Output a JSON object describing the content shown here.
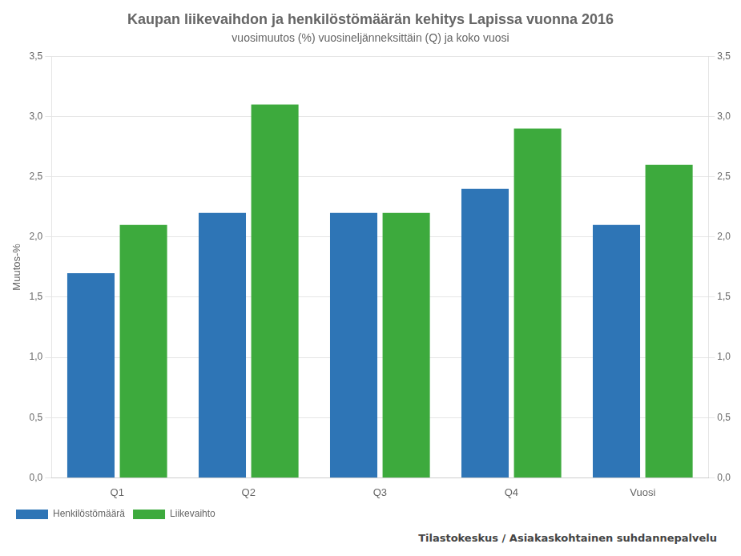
{
  "chart_data": {
    "type": "bar",
    "title": "Kaupan liikevaihdon ja henkilöstömäärän kehitys Lapissa vuonna 2016",
    "subtitle": "vuosimuutos (%) vuosineljänneksittäin (Q) ja koko vuosi",
    "y_label": "Muutos-%",
    "categories": [
      "Q1",
      "Q2",
      "Q3",
      "Q4",
      "Vuosi"
    ],
    "series": [
      {
        "name": "Henkilöstömäärä",
        "color": "#2e75b6",
        "values": [
          1.7,
          2.2,
          2.2,
          2.4,
          2.1
        ]
      },
      {
        "name": "Liikevaihto",
        "color": "#3daa3d",
        "values": [
          2.1,
          3.1,
          2.2,
          2.9,
          2.6
        ]
      }
    ],
    "ylim": [
      0,
      3.5
    ],
    "yticks": [
      {
        "value": 0.0,
        "label": "0,0"
      },
      {
        "value": 0.5,
        "label": "0,5"
      },
      {
        "value": 1.0,
        "label": "1,0"
      },
      {
        "value": 1.5,
        "label": "1,5"
      },
      {
        "value": 2.0,
        "label": "2,0"
      },
      {
        "value": 2.5,
        "label": "2,5"
      },
      {
        "value": 3.0,
        "label": "3,0"
      },
      {
        "value": 3.5,
        "label": "3,5"
      }
    ],
    "y2lim": [
      0,
      3.5
    ],
    "y2ticks": [
      {
        "value": 0.0,
        "label": "0,0"
      },
      {
        "value": 0.5,
        "label": "0,5"
      },
      {
        "value": 1.0,
        "label": "1,0"
      },
      {
        "value": 1.5,
        "label": "1,5"
      },
      {
        "value": 2.0,
        "label": "2,0"
      },
      {
        "value": 2.5,
        "label": "2,5"
      },
      {
        "value": 3.0,
        "label": "3,0"
      },
      {
        "value": 3.5,
        "label": "3,5"
      }
    ],
    "grid": true,
    "legend": "bottom",
    "footer": "Tilastokeskus / Asiakaskohtainen suhdannepalvelu"
  }
}
